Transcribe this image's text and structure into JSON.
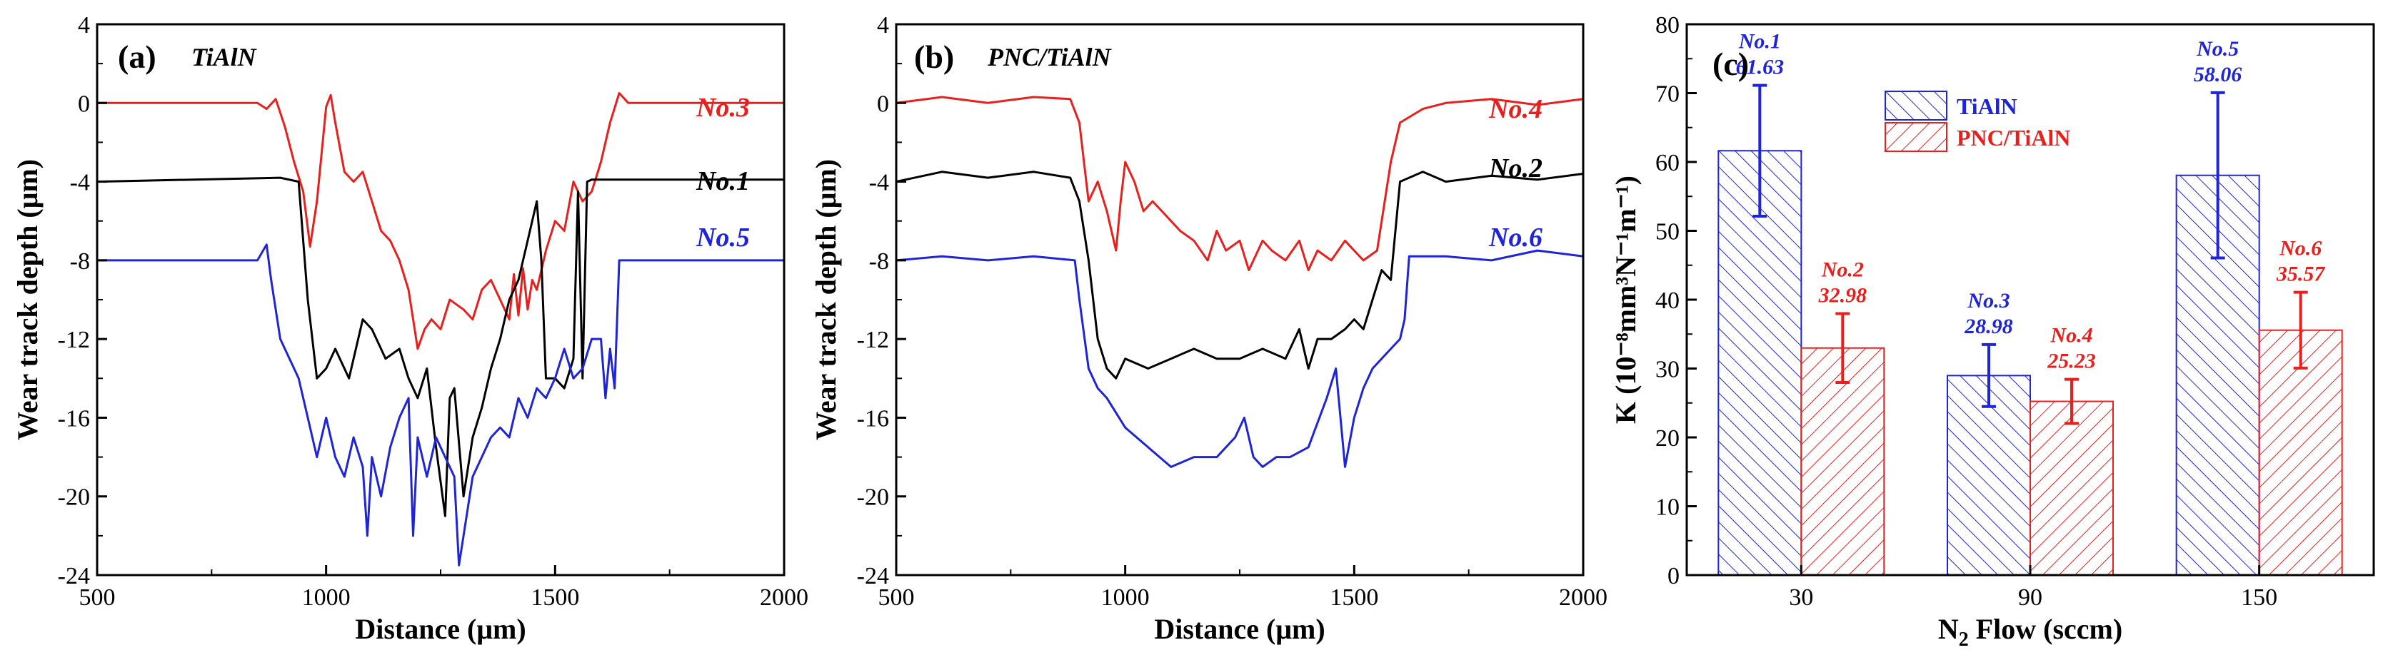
{
  "colors": {
    "black": "#000000",
    "red": "#e8201d",
    "blue": "#1f24d6"
  },
  "chart_data": [
    {
      "type": "line",
      "panel": "(a)",
      "title": "TiAlN",
      "xlabel": "Distance (μm)",
      "ylabel": "Wear track depth (μm)",
      "xlim": [
        500,
        2000
      ],
      "ylim": [
        -24,
        4
      ],
      "xticks": [
        500,
        1000,
        1500,
        2000
      ],
      "yticks": [
        4,
        0,
        -4,
        -8,
        -12,
        -16,
        -20,
        -24
      ],
      "series": [
        {
          "name": "No.3",
          "color": "#e8201d",
          "x": [
            500,
            850,
            870,
            890,
            910,
            930,
            950,
            965,
            980,
            1000,
            1010,
            1020,
            1040,
            1060,
            1080,
            1100,
            1120,
            1140,
            1160,
            1180,
            1200,
            1215,
            1230,
            1250,
            1270,
            1300,
            1320,
            1340,
            1360,
            1380,
            1400,
            1410,
            1420,
            1430,
            1440,
            1450,
            1460,
            1480,
            1500,
            1520,
            1540,
            1560,
            1580,
            1600,
            1620,
            1640,
            1660,
            2000
          ],
          "y": [
            0,
            0,
            -0.3,
            0.2,
            -1.2,
            -3,
            -4.5,
            -7.3,
            -5,
            -0.2,
            0.4,
            -1,
            -3.5,
            -4,
            -3.5,
            -5,
            -6.5,
            -7,
            -8,
            -9.5,
            -12.5,
            -11.5,
            -11,
            -11.5,
            -10,
            -10.5,
            -11,
            -9.5,
            -9,
            -10,
            -11,
            -8.7,
            -10.8,
            -8.4,
            -10.5,
            -9,
            -9.5,
            -7.5,
            -6,
            -6.5,
            -4,
            -5,
            -4.5,
            -3,
            -1,
            0.5,
            0,
            0
          ]
        },
        {
          "name": "No.1",
          "color": "#000000",
          "x": [
            500,
            900,
            940,
            960,
            980,
            1000,
            1020,
            1050,
            1080,
            1100,
            1130,
            1160,
            1180,
            1200,
            1220,
            1240,
            1260,
            1270,
            1280,
            1300,
            1320,
            1340,
            1360,
            1380,
            1400,
            1420,
            1440,
            1460,
            1470,
            1480,
            1500,
            1520,
            1540,
            1550,
            1560,
            1570,
            1580,
            2000
          ],
          "y": [
            -4,
            -3.8,
            -4,
            -10,
            -14,
            -13.5,
            -12.5,
            -14,
            -11,
            -11.5,
            -13,
            -12.5,
            -14,
            -15,
            -13.5,
            -17.5,
            -21,
            -15,
            -14.5,
            -20,
            -17,
            -15.5,
            -13.5,
            -12,
            -10,
            -9,
            -7,
            -5,
            -8,
            -14,
            -14,
            -14.5,
            -13,
            -4.5,
            -14,
            -4,
            -3.9,
            -3.9
          ]
        },
        {
          "name": "No.5",
          "color": "#1f24d6",
          "x": [
            500,
            850,
            870,
            880,
            900,
            920,
            940,
            960,
            980,
            1000,
            1020,
            1040,
            1060,
            1080,
            1090,
            1100,
            1120,
            1140,
            1160,
            1180,
            1190,
            1200,
            1220,
            1240,
            1260,
            1280,
            1290,
            1300,
            1320,
            1340,
            1360,
            1380,
            1400,
            1420,
            1440,
            1460,
            1480,
            1500,
            1520,
            1540,
            1560,
            1580,
            1600,
            1610,
            1620,
            1630,
            1640,
            1650,
            1660,
            2000
          ],
          "y": [
            -8,
            -8,
            -7.2,
            -9,
            -12,
            -13,
            -14,
            -16,
            -18,
            -16,
            -18,
            -19,
            -17,
            -18.5,
            -22,
            -18,
            -20,
            -17.5,
            -16,
            -15,
            -22,
            -17,
            -19,
            -17,
            -18,
            -19,
            -23.5,
            -22,
            -19,
            -18,
            -17,
            -16.5,
            -17,
            -15,
            -16,
            -14.5,
            -15,
            -14,
            -12.5,
            -14,
            -13.5,
            -12,
            -12,
            -15,
            -12.5,
            -14.5,
            -8,
            -8,
            -8,
            -8
          ]
        }
      ]
    },
    {
      "type": "line",
      "panel": "(b)",
      "title": "PNC/TiAlN",
      "xlabel": "Distance (μm)",
      "ylabel": "Wear track depth (μm)",
      "xlim": [
        500,
        2000
      ],
      "ylim": [
        -24,
        4
      ],
      "xticks": [
        500,
        1000,
        1500,
        2000
      ],
      "yticks": [
        4,
        0,
        -4,
        -8,
        -12,
        -16,
        -20,
        -24
      ],
      "series": [
        {
          "name": "No.4",
          "color": "#e8201d",
          "x": [
            500,
            600,
            700,
            800,
            880,
            900,
            910,
            920,
            940,
            960,
            980,
            990,
            1000,
            1020,
            1040,
            1060,
            1080,
            1100,
            1120,
            1150,
            1180,
            1200,
            1220,
            1250,
            1270,
            1300,
            1320,
            1350,
            1380,
            1400,
            1420,
            1450,
            1480,
            1500,
            1520,
            1550,
            1580,
            1600,
            1650,
            1700,
            1800,
            1900,
            2000
          ],
          "y": [
            0,
            0.3,
            0,
            0.3,
            0.2,
            -1,
            -3,
            -5,
            -4,
            -5.5,
            -7.5,
            -5,
            -3,
            -4,
            -5.5,
            -5,
            -5.5,
            -6,
            -6.5,
            -7,
            -8,
            -6.5,
            -7.5,
            -7,
            -8.5,
            -7,
            -7.5,
            -8,
            -7,
            -8.5,
            -7.5,
            -8,
            -7,
            -7.5,
            -8,
            -7.5,
            -3,
            -1,
            -0.3,
            0,
            0.2,
            -0.1,
            0.2
          ]
        },
        {
          "name": "No.2",
          "color": "#000000",
          "x": [
            500,
            600,
            700,
            800,
            880,
            900,
            920,
            940,
            960,
            980,
            1000,
            1050,
            1100,
            1150,
            1200,
            1250,
            1300,
            1350,
            1380,
            1400,
            1420,
            1450,
            1480,
            1500,
            1520,
            1540,
            1560,
            1580,
            1600,
            1650,
            1700,
            1800,
            1900,
            2000
          ],
          "y": [
            -4,
            -3.5,
            -3.8,
            -3.5,
            -3.8,
            -5,
            -8,
            -12,
            -13.5,
            -14,
            -13,
            -13.5,
            -13,
            -12.5,
            -13,
            -13,
            -12.5,
            -13,
            -11.5,
            -13.5,
            -12,
            -12,
            -11.5,
            -11,
            -11.5,
            -10,
            -8.5,
            -9,
            -4,
            -3.5,
            -4,
            -3.7,
            -3.9,
            -3.6
          ]
        },
        {
          "name": "No.6",
          "color": "#1f24d6",
          "x": [
            500,
            600,
            700,
            800,
            890,
            900,
            920,
            940,
            960,
            1000,
            1050,
            1100,
            1150,
            1200,
            1240,
            1260,
            1280,
            1300,
            1330,
            1360,
            1400,
            1440,
            1460,
            1470,
            1480,
            1500,
            1520,
            1540,
            1560,
            1580,
            1600,
            1610,
            1620,
            1700,
            1800,
            1900,
            2000
          ],
          "y": [
            -8,
            -7.8,
            -8,
            -7.8,
            -8,
            -10,
            -13.5,
            -14.5,
            -15,
            -16.5,
            -17.5,
            -18.5,
            -18,
            -18,
            -17,
            -16,
            -18,
            -18.5,
            -18,
            -18,
            -17.5,
            -15,
            -13.5,
            -16,
            -18.5,
            -16,
            -14.5,
            -13.5,
            -13,
            -12.5,
            -12,
            -11,
            -7.8,
            -7.8,
            -8,
            -7.5,
            -7.8
          ]
        }
      ]
    },
    {
      "type": "bar",
      "panel": "(c)",
      "xlabel": "N2 Flow (sccm)",
      "xlabel_main": "N",
      "xlabel_sub": "2",
      "xlabel_rest": " Flow (sccm)",
      "ylabel": "K (10⁻⁸mm³N⁻¹m⁻¹)",
      "ylim": [
        0,
        80
      ],
      "yticks": [
        0,
        10,
        20,
        30,
        40,
        50,
        60,
        70,
        80
      ],
      "categories": [
        "30",
        "90",
        "150"
      ],
      "series": [
        {
          "name": "TiAlN",
          "color": "#1f24d6",
          "values": [
            61.63,
            28.98,
            58.06
          ],
          "errors": [
            9.5,
            4.5,
            12
          ],
          "labels": [
            "No.1",
            "No.3",
            "No.5"
          ],
          "value_labels": [
            "61.63",
            "28.98",
            "58.06"
          ]
        },
        {
          "name": "PNC/TiAlN",
          "color": "#e8201d",
          "values": [
            32.98,
            25.23,
            35.57
          ],
          "errors": [
            5,
            3.2,
            5.5
          ],
          "labels": [
            "No.2",
            "No.4",
            "No.6"
          ],
          "value_labels": [
            "32.98",
            "25.23",
            "35.57"
          ]
        }
      ],
      "legend": [
        "TiAlN",
        "PNC/TiAlN"
      ]
    }
  ]
}
